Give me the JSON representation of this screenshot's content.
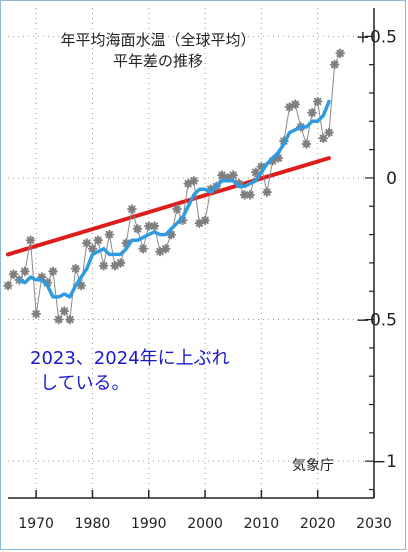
{
  "chart_data": {
    "type": "line",
    "title_lines": [
      "年平均海面水温（全球平均）",
      "平年差の推移"
    ],
    "annotation_lines": [
      "2023、2024年に上ぶれ",
      "している。"
    ],
    "source": "気象庁",
    "xlim": [
      1965,
      2030
    ],
    "ylim": [
      -1.13,
      0.6
    ],
    "x_ticks": [
      1970,
      1980,
      1990,
      2000,
      2010,
      2020,
      2030
    ],
    "y_ticks": [
      0.5,
      0,
      -0.5,
      -1
    ],
    "y_tick_labels": [
      "+0.5",
      "0",
      "−0.5",
      "−1"
    ],
    "grid": true,
    "colors": {
      "annual": "#7f7f7f",
      "moving_avg": "#2f9be0",
      "trend": "#dd1c1c",
      "annotation": "#1a1acd",
      "frame": "#8fb8d8"
    },
    "series": [
      {
        "role": "annual",
        "x": [
          1965,
          1966,
          1967,
          1968,
          1969,
          1970,
          1971,
          1972,
          1973,
          1974,
          1975,
          1976,
          1977,
          1978,
          1979,
          1980,
          1981,
          1982,
          1983,
          1984,
          1985,
          1986,
          1987,
          1988,
          1989,
          1990,
          1991,
          1992,
          1993,
          1994,
          1995,
          1996,
          1997,
          1998,
          1999,
          2000,
          2001,
          2002,
          2003,
          2004,
          2005,
          2006,
          2007,
          2008,
          2009,
          2010,
          2011,
          2012,
          2013,
          2014,
          2015,
          2016,
          2017,
          2018,
          2019,
          2020,
          2021,
          2022,
          2023,
          2024
        ],
        "values": [
          -0.38,
          -0.34,
          -0.36,
          -0.33,
          -0.22,
          -0.48,
          -0.35,
          -0.37,
          -0.33,
          -0.5,
          -0.47,
          -0.5,
          -0.32,
          -0.38,
          -0.23,
          -0.25,
          -0.22,
          -0.31,
          -0.2,
          -0.31,
          -0.3,
          -0.23,
          -0.11,
          -0.18,
          -0.25,
          -0.17,
          -0.17,
          -0.26,
          -0.25,
          -0.2,
          -0.11,
          -0.15,
          -0.02,
          -0.01,
          -0.16,
          -0.15,
          -0.04,
          -0.03,
          0.01,
          0.0,
          0.01,
          -0.02,
          -0.06,
          -0.06,
          0.02,
          0.04,
          -0.05,
          0.06,
          0.07,
          0.13,
          0.25,
          0.26,
          0.18,
          0.12,
          0.23,
          0.27,
          0.14,
          0.16,
          0.4,
          0.44
        ]
      },
      {
        "role": "moving_avg",
        "x": [
          1967,
          1968,
          1969,
          1970,
          1971,
          1972,
          1973,
          1974,
          1975,
          1976,
          1977,
          1978,
          1979,
          1980,
          1981,
          1982,
          1983,
          1984,
          1985,
          1986,
          1987,
          1988,
          1989,
          1990,
          1991,
          1992,
          1993,
          1994,
          1995,
          1996,
          1997,
          1998,
          1999,
          2000,
          2001,
          2002,
          2003,
          2004,
          2005,
          2006,
          2007,
          2008,
          2009,
          2010,
          2011,
          2012,
          2013,
          2014,
          2015,
          2016,
          2017,
          2018,
          2019,
          2020,
          2021,
          2022
        ],
        "values": [
          -0.36,
          -0.37,
          -0.35,
          -0.36,
          -0.36,
          -0.38,
          -0.42,
          -0.42,
          -0.41,
          -0.42,
          -0.38,
          -0.35,
          -0.32,
          -0.27,
          -0.26,
          -0.25,
          -0.27,
          -0.27,
          -0.27,
          -0.25,
          -0.22,
          -0.22,
          -0.21,
          -0.2,
          -0.19,
          -0.2,
          -0.2,
          -0.18,
          -0.16,
          -0.14,
          -0.1,
          -0.06,
          -0.04,
          -0.04,
          -0.05,
          -0.03,
          -0.01,
          -0.01,
          -0.01,
          -0.03,
          -0.03,
          -0.02,
          -0.01,
          0.02,
          0.05,
          0.07,
          0.09,
          0.12,
          0.16,
          0.17,
          0.18,
          0.18,
          0.2,
          0.2,
          0.22,
          0.27
        ]
      },
      {
        "role": "trend",
        "x": [
          1965,
          2022
        ],
        "values": [
          -0.27,
          0.07
        ]
      }
    ]
  }
}
